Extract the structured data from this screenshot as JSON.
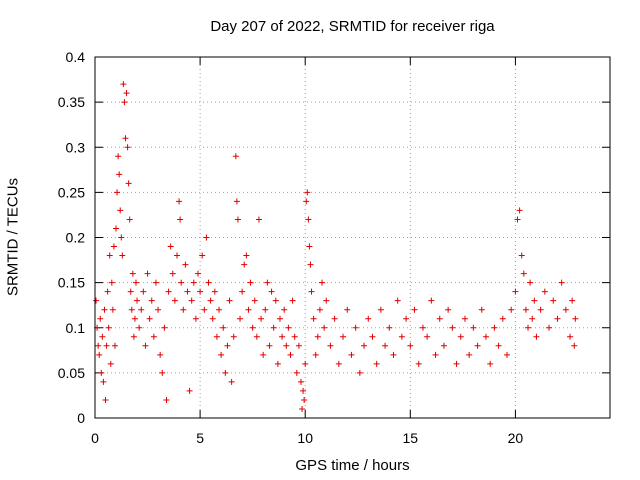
{
  "chart_data": {
    "type": "scatter",
    "title": "Day 207 of 2022, SRMTID for receiver riga",
    "xlabel": "GPS time / hours",
    "ylabel": "SRMTID / TECUs",
    "xlim": [
      0,
      24.5
    ],
    "ylim": [
      0,
      0.4
    ],
    "x_ticks": [
      "0",
      "5",
      "10",
      "15",
      "20"
    ],
    "y_ticks": [
      "0",
      "0.05",
      "0.1",
      "0.15",
      "0.2",
      "0.25",
      "0.3",
      "0.35",
      "0.4"
    ],
    "x_tick_values": [
      0,
      5,
      10,
      15,
      20
    ],
    "y_tick_values": [
      0,
      0.05,
      0.1,
      0.15,
      0.2,
      0.25,
      0.3,
      0.35,
      0.4
    ],
    "grid": true,
    "marker": "+",
    "color": "#e00000",
    "series": [
      {
        "name": "SRMTID",
        "points": [
          [
            0.05,
            0.13
          ],
          [
            0.1,
            0.1
          ],
          [
            0.15,
            0.08
          ],
          [
            0.2,
            0.07
          ],
          [
            0.25,
            0.11
          ],
          [
            0.3,
            0.05
          ],
          [
            0.35,
            0.09
          ],
          [
            0.4,
            0.04
          ],
          [
            0.45,
            0.12
          ],
          [
            0.5,
            0.02
          ],
          [
            0.55,
            0.08
          ],
          [
            0.6,
            0.14
          ],
          [
            0.65,
            0.1
          ],
          [
            0.7,
            0.18
          ],
          [
            0.75,
            0.06
          ],
          [
            0.8,
            0.15
          ],
          [
            0.85,
            0.12
          ],
          [
            0.9,
            0.19
          ],
          [
            0.95,
            0.08
          ],
          [
            1.0,
            0.21
          ],
          [
            1.05,
            0.25
          ],
          [
            1.1,
            0.29
          ],
          [
            1.15,
            0.27
          ],
          [
            1.2,
            0.23
          ],
          [
            1.25,
            0.2
          ],
          [
            1.3,
            0.18
          ],
          [
            1.35,
            0.37
          ],
          [
            1.4,
            0.35
          ],
          [
            1.45,
            0.31
          ],
          [
            1.5,
            0.36
          ],
          [
            1.55,
            0.3
          ],
          [
            1.6,
            0.26
          ],
          [
            1.65,
            0.22
          ],
          [
            1.7,
            0.14
          ],
          [
            1.75,
            0.12
          ],
          [
            1.8,
            0.16
          ],
          [
            1.85,
            0.09
          ],
          [
            1.9,
            0.11
          ],
          [
            1.95,
            0.15
          ],
          [
            2.0,
            0.13
          ],
          [
            2.1,
            0.1
          ],
          [
            2.2,
            0.12
          ],
          [
            2.3,
            0.14
          ],
          [
            2.4,
            0.08
          ],
          [
            2.5,
            0.16
          ],
          [
            2.6,
            0.11
          ],
          [
            2.7,
            0.13
          ],
          [
            2.8,
            0.09
          ],
          [
            2.9,
            0.15
          ],
          [
            3.0,
            0.12
          ],
          [
            3.1,
            0.07
          ],
          [
            3.2,
            0.05
          ],
          [
            3.3,
            0.1
          ],
          [
            3.4,
            0.02
          ],
          [
            3.5,
            0.14
          ],
          [
            3.6,
            0.19
          ],
          [
            3.7,
            0.16
          ],
          [
            3.8,
            0.13
          ],
          [
            3.9,
            0.18
          ],
          [
            4.0,
            0.24
          ],
          [
            4.05,
            0.22
          ],
          [
            4.1,
            0.15
          ],
          [
            4.2,
            0.12
          ],
          [
            4.3,
            0.17
          ],
          [
            4.4,
            0.14
          ],
          [
            4.5,
            0.03
          ],
          [
            4.6,
            0.13
          ],
          [
            4.7,
            0.15
          ],
          [
            4.8,
            0.11
          ],
          [
            4.9,
            0.16
          ],
          [
            5.0,
            0.14
          ],
          [
            5.1,
            0.18
          ],
          [
            5.2,
            0.12
          ],
          [
            5.3,
            0.2
          ],
          [
            5.4,
            0.15
          ],
          [
            5.5,
            0.13
          ],
          [
            5.6,
            0.11
          ],
          [
            5.7,
            0.14
          ],
          [
            5.8,
            0.09
          ],
          [
            5.9,
            0.12
          ],
          [
            6.0,
            0.07
          ],
          [
            6.1,
            0.1
          ],
          [
            6.2,
            0.05
          ],
          [
            6.3,
            0.08
          ],
          [
            6.4,
            0.13
          ],
          [
            6.5,
            0.04
          ],
          [
            6.6,
            0.09
          ],
          [
            6.7,
            0.29
          ],
          [
            6.75,
            0.24
          ],
          [
            6.8,
            0.22
          ],
          [
            6.9,
            0.11
          ],
          [
            7.0,
            0.14
          ],
          [
            7.1,
            0.17
          ],
          [
            7.2,
            0.18
          ],
          [
            7.3,
            0.12
          ],
          [
            7.4,
            0.15
          ],
          [
            7.5,
            0.1
          ],
          [
            7.6,
            0.13
          ],
          [
            7.7,
            0.09
          ],
          [
            7.8,
            0.22
          ],
          [
            7.9,
            0.11
          ],
          [
            8.0,
            0.07
          ],
          [
            8.1,
            0.12
          ],
          [
            8.2,
            0.15
          ],
          [
            8.3,
            0.08
          ],
          [
            8.4,
            0.14
          ],
          [
            8.5,
            0.1
          ],
          [
            8.6,
            0.13
          ],
          [
            8.7,
            0.06
          ],
          [
            8.8,
            0.11
          ],
          [
            8.9,
            0.09
          ],
          [
            9.0,
            0.12
          ],
          [
            9.1,
            0.08
          ],
          [
            9.2,
            0.1
          ],
          [
            9.3,
            0.07
          ],
          [
            9.4,
            0.13
          ],
          [
            9.5,
            0.09
          ],
          [
            9.6,
            0.05
          ],
          [
            9.7,
            0.08
          ],
          [
            9.8,
            0.04
          ],
          [
            9.85,
            0.01
          ],
          [
            9.9,
            0.03
          ],
          [
            9.95,
            0.02
          ],
          [
            10.0,
            0.06
          ],
          [
            10.05,
            0.24
          ],
          [
            10.1,
            0.25
          ],
          [
            10.15,
            0.22
          ],
          [
            10.2,
            0.19
          ],
          [
            10.25,
            0.17
          ],
          [
            10.3,
            0.14
          ],
          [
            10.4,
            0.11
          ],
          [
            10.5,
            0.07
          ],
          [
            10.6,
            0.09
          ],
          [
            10.7,
            0.12
          ],
          [
            10.8,
            0.15
          ],
          [
            10.9,
            0.1
          ],
          [
            11.0,
            0.13
          ],
          [
            11.2,
            0.08
          ],
          [
            11.4,
            0.11
          ],
          [
            11.6,
            0.06
          ],
          [
            11.8,
            0.09
          ],
          [
            12.0,
            0.12
          ],
          [
            12.2,
            0.07
          ],
          [
            12.4,
            0.1
          ],
          [
            12.6,
            0.05
          ],
          [
            12.8,
            0.08
          ],
          [
            13.0,
            0.11
          ],
          [
            13.2,
            0.09
          ],
          [
            13.4,
            0.06
          ],
          [
            13.6,
            0.12
          ],
          [
            13.8,
            0.08
          ],
          [
            14.0,
            0.1
          ],
          [
            14.2,
            0.07
          ],
          [
            14.4,
            0.13
          ],
          [
            14.6,
            0.09
          ],
          [
            14.8,
            0.11
          ],
          [
            15.0,
            0.08
          ],
          [
            15.2,
            0.12
          ],
          [
            15.4,
            0.06
          ],
          [
            15.6,
            0.1
          ],
          [
            15.8,
            0.09
          ],
          [
            16.0,
            0.13
          ],
          [
            16.2,
            0.07
          ],
          [
            16.4,
            0.11
          ],
          [
            16.6,
            0.08
          ],
          [
            16.8,
            0.12
          ],
          [
            17.0,
            0.1
          ],
          [
            17.2,
            0.06
          ],
          [
            17.4,
            0.09
          ],
          [
            17.6,
            0.11
          ],
          [
            17.8,
            0.07
          ],
          [
            18.0,
            0.1
          ],
          [
            18.2,
            0.08
          ],
          [
            18.4,
            0.12
          ],
          [
            18.6,
            0.09
          ],
          [
            18.8,
            0.06
          ],
          [
            19.0,
            0.1
          ],
          [
            19.2,
            0.08
          ],
          [
            19.4,
            0.11
          ],
          [
            19.6,
            0.07
          ],
          [
            19.8,
            0.12
          ],
          [
            20.0,
            0.14
          ],
          [
            20.1,
            0.22
          ],
          [
            20.2,
            0.23
          ],
          [
            20.3,
            0.18
          ],
          [
            20.4,
            0.16
          ],
          [
            20.5,
            0.12
          ],
          [
            20.6,
            0.1
          ],
          [
            20.7,
            0.15
          ],
          [
            20.8,
            0.11
          ],
          [
            20.9,
            0.13
          ],
          [
            21.0,
            0.09
          ],
          [
            21.2,
            0.12
          ],
          [
            21.4,
            0.14
          ],
          [
            21.6,
            0.1
          ],
          [
            21.8,
            0.13
          ],
          [
            22.0,
            0.11
          ],
          [
            22.2,
            0.15
          ],
          [
            22.4,
            0.12
          ],
          [
            22.6,
            0.09
          ],
          [
            22.7,
            0.13
          ],
          [
            22.8,
            0.08
          ],
          [
            22.85,
            0.11
          ]
        ]
      }
    ]
  }
}
